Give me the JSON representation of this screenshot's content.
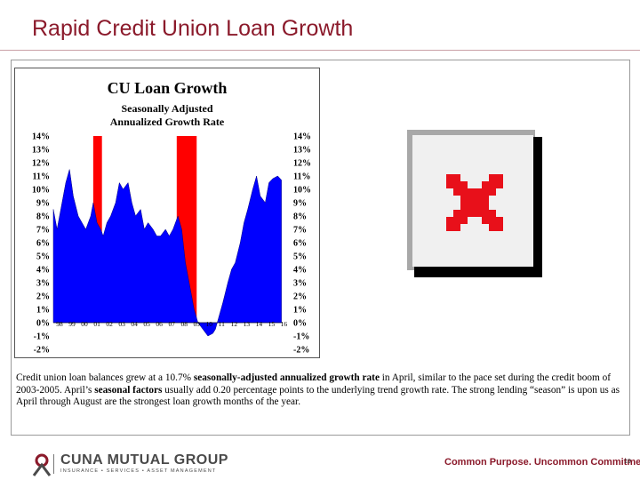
{
  "slide": {
    "title": "Rapid Credit Union Loan Growth",
    "caption_parts": [
      {
        "text": "Credit union loan balances grew at a 10.7% ",
        "bold": false
      },
      {
        "text": "seasonally-adjusted annualized growth rate",
        "bold": true
      },
      {
        "text": " in April, similar to the pace set during the credit boom of 2003-2005.  April’s ",
        "bold": false
      },
      {
        "text": "seasonal factors",
        "bold": true
      },
      {
        "text": " usually add 0.20 percentage points to the underlying trend growth rate. The strong lending “season” is upon us as April through August are the strongest loan growth months of the year.",
        "bold": false
      }
    ],
    "page_number": "19"
  },
  "footer": {
    "logo_text": "CUNA MUTUAL GROUP",
    "logo_subtext": "INSURANCE • SERVICES • ASSET MANAGEMENT",
    "tagline": "Common Purpose. Uncommon Commitment."
  },
  "colors": {
    "title": "#8b1a2b",
    "positive_area": "#0000ff",
    "recession_band": "#ff0000",
    "placeholder_icon": "#e8101a"
  },
  "placeholder_icon": "broken-image-icon",
  "chart_data": {
    "type": "area",
    "title": "CU Loan Growth",
    "subtitle_line1": "Seasonally Adjusted",
    "subtitle_line2": "Annualized Growth Rate",
    "y_tick_labels": [
      "14%",
      "13%",
      "12%",
      "11%",
      "10%",
      "9%",
      "8%",
      "7%",
      "6%",
      "5%",
      "4%",
      "3%",
      "2%",
      "1%",
      "0%",
      "-1%",
      "-2%"
    ],
    "x_tick_labels": [
      "98",
      "99",
      "00",
      "01",
      "02",
      "03",
      "04",
      "05",
      "06",
      "07",
      "08",
      "09",
      "10",
      "11",
      "12",
      "13",
      "14",
      "15",
      "16"
    ],
    "ylim": [
      -2,
      14
    ],
    "xlim": [
      1998,
      2016.4
    ],
    "recession_bands": [
      [
        2001.2,
        2001.9
      ],
      [
        2007.9,
        2009.5
      ]
    ],
    "series": [
      {
        "x": [
          1998.0,
          1998.3,
          1998.6,
          1999.0,
          1999.3,
          1999.6,
          2000.0,
          2000.3,
          2000.6,
          2001.0,
          2001.2,
          2001.5,
          2001.8,
          2002.0,
          2002.3,
          2002.6,
          2003.0,
          2003.3,
          2003.6,
          2004.0,
          2004.3,
          2004.6,
          2005.0,
          2005.3,
          2005.6,
          2006.0,
          2006.3,
          2006.6,
          2007.0,
          2007.3,
          2007.6,
          2008.0,
          2008.3,
          2008.6,
          2009.0,
          2009.3,
          2009.6,
          2010.0,
          2010.4,
          2010.8,
          2011.0,
          2011.3,
          2011.6,
          2012.0,
          2012.3,
          2012.6,
          2013.0,
          2013.3,
          2013.6,
          2014.0,
          2014.3,
          2014.6,
          2015.0,
          2015.3,
          2015.6,
          2016.0,
          2016.3
        ],
        "values": [
          8.5,
          7.0,
          8.5,
          10.5,
          11.5,
          9.5,
          8.0,
          7.5,
          7.0,
          8.0,
          9.0,
          7.5,
          7.0,
          6.5,
          7.5,
          8.0,
          9.0,
          10.5,
          10.0,
          10.5,
          9.0,
          8.0,
          8.5,
          7.0,
          7.5,
          7.0,
          6.5,
          6.5,
          7.0,
          6.5,
          7.0,
          8.0,
          7.0,
          4.5,
          2.5,
          1.0,
          0.0,
          -0.5,
          -1.0,
          -0.8,
          -0.5,
          0.5,
          1.5,
          3.0,
          4.0,
          4.5,
          6.0,
          7.5,
          8.5,
          10.0,
          11.0,
          9.5,
          9.0,
          10.5,
          10.8,
          11.0,
          10.7
        ]
      }
    ]
  }
}
